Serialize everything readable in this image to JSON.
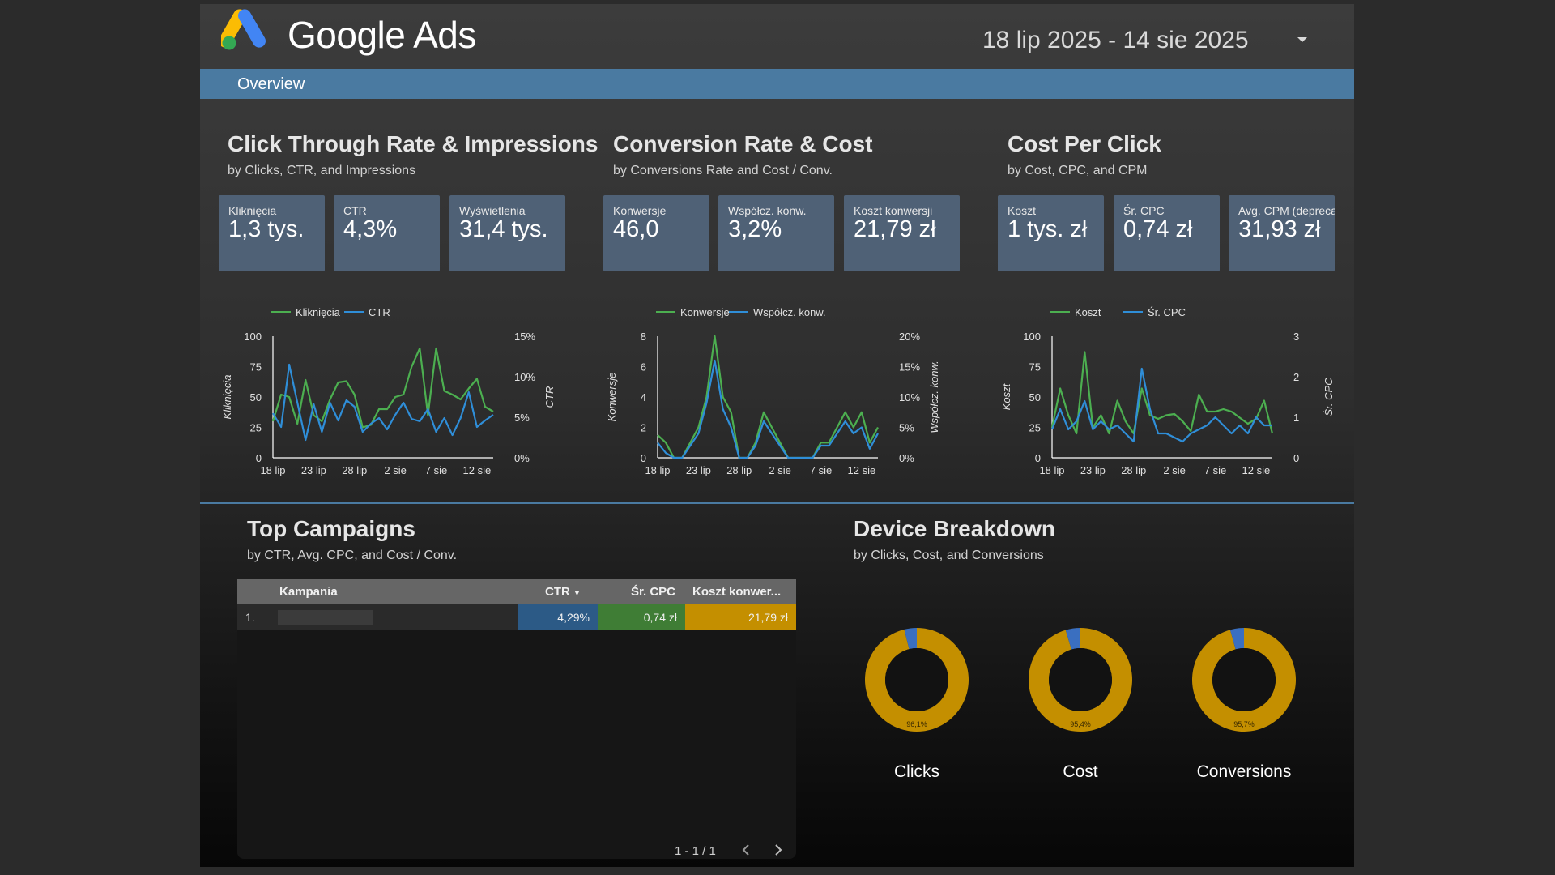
{
  "header": {
    "brand": "Google Ads",
    "date_range": "18 lip 2025 - 14 sie 2025"
  },
  "nav": {
    "overview": "Overview"
  },
  "colors": {
    "accent_blue": "#4a7aa1",
    "kpi_bg": "#4f6176",
    "line_green": "#4caf50",
    "line_blue": "#2f8ed8",
    "donut_gold": "#c48f00",
    "donut_blue": "#3a6fc0",
    "cell_blue": "#2c5a86",
    "cell_green": "#3f7d35",
    "cell_gold": "#c48f00"
  },
  "sections": {
    "ctr": {
      "title": "Click Through Rate & Impressions",
      "subtitle": "by Clicks, CTR, and Impressions",
      "kpis": [
        {
          "label": "Kliknięcia",
          "value": "1,3 tys."
        },
        {
          "label": "CTR",
          "value": "4,3%"
        },
        {
          "label": "Wyświetlenia",
          "value": "31,4 tys."
        }
      ]
    },
    "conv": {
      "title": "Conversion Rate & Cost",
      "subtitle": "by Conversions Rate and Cost / Conv.",
      "kpis": [
        {
          "label": "Konwersje",
          "value": "46,0"
        },
        {
          "label": "Współcz. konw.",
          "value": "3,2%"
        },
        {
          "label": "Koszt konwersji",
          "value": "21,79 zł"
        }
      ]
    },
    "cpc": {
      "title": "Cost Per Click",
      "subtitle": "by Cost, CPC, and CPM",
      "kpis": [
        {
          "label": "Koszt",
          "value": "1 tys. zł"
        },
        {
          "label": "Śr. CPC",
          "value": "0,74 zł"
        },
        {
          "label": "Avg. CPM (deprecated)",
          "value": "31,93 zł"
        }
      ]
    },
    "campaigns": {
      "title": "Top Campaigns",
      "subtitle": "by CTR, Avg. CPC, and Cost / Conv."
    },
    "devices": {
      "title": "Device Breakdown",
      "subtitle": "by Clicks, Cost, and Conversions"
    }
  },
  "chart_data": [
    {
      "type": "line",
      "x": [
        "18 lip",
        "19 lip",
        "20 lip",
        "21 lip",
        "22 lip",
        "23 lip",
        "24 lip",
        "25 lip",
        "26 lip",
        "27 lip",
        "28 lip",
        "29 lip",
        "30 lip",
        "31 lip",
        "1 sie",
        "2 sie",
        "3 sie",
        "4 sie",
        "5 sie",
        "6 sie",
        "7 sie",
        "8 sie",
        "9 sie",
        "10 sie",
        "11 sie",
        "12 sie",
        "13 sie",
        "14 sie"
      ],
      "x_ticks": [
        "18 lip",
        "23 lip",
        "28 lip",
        "2 sie",
        "7 sie",
        "12 sie"
      ],
      "legend": [
        "Kliknięcia",
        "CTR"
      ],
      "ylabel": "Kliknięcia",
      "ylabel_right": "CTR",
      "y_ticks": [
        "100",
        "75",
        "50",
        "25",
        "0"
      ],
      "y_right_ticks": [
        "15%",
        "10%",
        "5%",
        "0%"
      ],
      "ylim": [
        0,
        100
      ],
      "ylim_right": [
        0,
        15
      ],
      "series": [
        {
          "name": "Kliknięcia",
          "axis": "left",
          "values": [
            30,
            52,
            50,
            28,
            64,
            35,
            30,
            48,
            62,
            63,
            52,
            25,
            27,
            40,
            40,
            50,
            52,
            75,
            90,
            35,
            90,
            55,
            52,
            48,
            57,
            65,
            42,
            38
          ]
        },
        {
          "name": "CTR",
          "axis": "right",
          "values": [
            5.5,
            3.8,
            11.5,
            6.8,
            2.2,
            6.6,
            3.2,
            6.8,
            4.6,
            7.1,
            6.3,
            3.2,
            4.2,
            4.9,
            3.5,
            5.3,
            6.8,
            4.8,
            4.5,
            6.0,
            3.2,
            4.9,
            2.8,
            4.9,
            8.1,
            3.8,
            4.6,
            5.3
          ]
        }
      ]
    },
    {
      "type": "line",
      "x": [
        "18 lip",
        "19 lip",
        "20 lip",
        "21 lip",
        "22 lip",
        "23 lip",
        "24 lip",
        "25 lip",
        "26 lip",
        "27 lip",
        "28 lip",
        "29 lip",
        "30 lip",
        "31 lip",
        "1 sie",
        "2 sie",
        "3 sie",
        "4 sie",
        "5 sie",
        "6 sie",
        "7 sie",
        "8 sie",
        "9 sie",
        "10 sie",
        "11 sie",
        "12 sie",
        "13 sie",
        "14 sie"
      ],
      "x_ticks": [
        "18 lip",
        "23 lip",
        "28 lip",
        "2 sie",
        "7 sie",
        "12 sie"
      ],
      "legend": [
        "Konwersje",
        "Współcz. konw."
      ],
      "ylabel": "Konwersje",
      "ylabel_right": "Współcz. konw.",
      "y_ticks": [
        "8",
        "6",
        "4",
        "2",
        "0"
      ],
      "y_right_ticks": [
        "20%",
        "15%",
        "10%",
        "5%",
        "0%"
      ],
      "ylim": [
        0,
        8
      ],
      "ylim_right": [
        0,
        20
      ],
      "series": [
        {
          "name": "Konwersje",
          "axis": "left",
          "values": [
            1.5,
            1,
            0,
            0,
            1,
            2,
            4,
            8,
            4,
            3,
            0,
            0,
            1,
            3,
            2,
            1,
            0,
            0,
            0,
            0,
            1,
            1,
            2,
            3,
            2,
            3,
            1,
            2
          ]
        },
        {
          "name": "Współcz. konw.",
          "axis": "right",
          "values": [
            2.5,
            0.8,
            0,
            0,
            2,
            4,
            9,
            16,
            8,
            5,
            0,
            0,
            2,
            6,
            4,
            2,
            0,
            0,
            0,
            0,
            2,
            2,
            4,
            6,
            4,
            5,
            1.5,
            4
          ]
        }
      ]
    },
    {
      "type": "line",
      "x": [
        "18 lip",
        "19 lip",
        "20 lip",
        "21 lip",
        "22 lip",
        "23 lip",
        "24 lip",
        "25 lip",
        "26 lip",
        "27 lip",
        "28 lip",
        "29 lip",
        "30 lip",
        "31 lip",
        "1 sie",
        "2 sie",
        "3 sie",
        "4 sie",
        "5 sie",
        "6 sie",
        "7 sie",
        "8 sie",
        "9 sie",
        "10 sie",
        "11 sie",
        "12 sie",
        "13 sie",
        "14 sie"
      ],
      "x_ticks": [
        "18 lip",
        "23 lip",
        "28 lip",
        "2 sie",
        "7 sie",
        "12 sie"
      ],
      "legend": [
        "Koszt",
        "Śr. CPC"
      ],
      "ylabel": "Koszt",
      "ylabel_right": "Śr. CPC",
      "y_ticks": [
        "100",
        "75",
        "50",
        "25",
        "0"
      ],
      "y_right_ticks": [
        "3",
        "2",
        "1",
        "0"
      ],
      "ylim": [
        0,
        100
      ],
      "ylim_right": [
        0,
        3
      ],
      "series": [
        {
          "name": "Koszt",
          "axis": "left",
          "values": [
            25,
            57,
            35,
            20,
            87,
            25,
            35,
            20,
            47,
            30,
            20,
            57,
            35,
            32,
            35,
            36,
            30,
            22,
            52,
            38,
            38,
            40,
            38,
            33,
            28,
            32,
            47,
            20
          ]
        },
        {
          "name": "Śr. CPC",
          "axis": "right",
          "values": [
            0.7,
            1.2,
            0.7,
            0.9,
            1.4,
            0.7,
            0.9,
            0.7,
            0.8,
            0.6,
            0.4,
            2.2,
            1.2,
            0.6,
            0.6,
            0.5,
            0.4,
            0.6,
            0.7,
            0.8,
            1.0,
            0.8,
            0.6,
            0.8,
            0.6,
            1.0,
            0.8,
            0.8
          ]
        }
      ]
    },
    {
      "type": "table",
      "columns": [
        "Kampania",
        "CTR",
        "Śr. CPC",
        "Koszt konwer..."
      ],
      "rows": [
        {
          "index": "1.",
          "name": "",
          "ctr": "4,29%",
          "cpc": "0,74 zł",
          "cost_conv": "21,79 zł"
        }
      ],
      "pagination": "1 - 1 / 1"
    },
    {
      "type": "pie",
      "title": "Clicks",
      "label": "96,1%",
      "values": [
        96.1,
        3.9
      ]
    },
    {
      "type": "pie",
      "title": "Cost",
      "label": "95,4%",
      "values": [
        95.4,
        4.6
      ]
    },
    {
      "type": "pie",
      "title": "Conversions",
      "label": "95,7%",
      "values": [
        95.7,
        4.3
      ]
    }
  ]
}
